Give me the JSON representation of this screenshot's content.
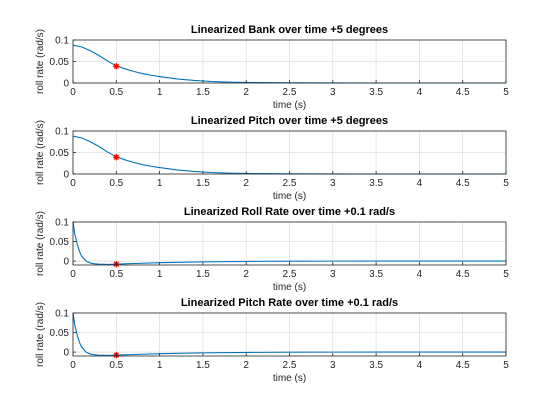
{
  "chart_data": [
    {
      "type": "line",
      "title": "Linearized Bank over time +5 degrees",
      "xlabel": "time (s)",
      "ylabel": "roll rate (rad/s)",
      "xlim": [
        0,
        5
      ],
      "ylim": [
        0,
        0.1
      ],
      "xticks": [
        "0",
        "0.5",
        "1",
        "1.5",
        "2",
        "2.5",
        "3",
        "3.5",
        "4",
        "4.5",
        "5"
      ],
      "yticks": [
        "0",
        "0.05",
        "0.1"
      ],
      "grid": true,
      "series": [
        {
          "color": "#0072bd",
          "x": [
            0,
            0.1,
            0.2,
            0.3,
            0.4,
            0.5,
            0.6,
            0.7,
            0.8,
            0.9,
            1.0,
            1.2,
            1.4,
            1.6,
            1.8,
            2.0,
            2.5,
            3.0,
            3.5,
            4.0,
            4.5,
            5.0
          ],
          "y": [
            0.088,
            0.084,
            0.075,
            0.064,
            0.051,
            0.04,
            0.033,
            0.027,
            0.022,
            0.018,
            0.015,
            0.0095,
            0.006,
            0.0035,
            0.002,
            0.0012,
            0.0004,
            0.0001,
            0,
            0,
            0,
            0
          ]
        }
      ],
      "marker": {
        "x": 0.5,
        "y": 0.039,
        "symbol": "*",
        "color": "#ff0000"
      }
    },
    {
      "type": "line",
      "title": "Linearized Pitch over time +5 degrees",
      "xlabel": "time (s)",
      "ylabel": "roll rate (rad/s)",
      "xlim": [
        0,
        5
      ],
      "ylim": [
        0,
        0.1
      ],
      "xticks": [
        "0",
        "0.5",
        "1",
        "1.5",
        "2",
        "2.5",
        "3",
        "3.5",
        "4",
        "4.5",
        "5"
      ],
      "yticks": [
        "0",
        "0.05",
        "0.1"
      ],
      "grid": true,
      "series": [
        {
          "color": "#0072bd",
          "x": [
            0,
            0.1,
            0.2,
            0.3,
            0.4,
            0.5,
            0.6,
            0.7,
            0.8,
            0.9,
            1.0,
            1.2,
            1.4,
            1.6,
            1.8,
            2.0,
            2.5,
            3.0,
            3.5,
            4.0,
            4.5,
            5.0
          ],
          "y": [
            0.088,
            0.084,
            0.075,
            0.064,
            0.051,
            0.04,
            0.033,
            0.027,
            0.022,
            0.018,
            0.015,
            0.0095,
            0.006,
            0.0035,
            0.002,
            0.0012,
            0.0004,
            0.0001,
            0,
            0,
            0,
            0
          ]
        }
      ],
      "marker": {
        "x": 0.5,
        "y": 0.039,
        "symbol": "*",
        "color": "#ff0000"
      }
    },
    {
      "type": "line",
      "title": "Linearized Roll Rate over time +0.1 rad/s",
      "xlabel": "time (s)",
      "ylabel": "roll rate (rad/s)",
      "xlim": [
        0,
        5
      ],
      "ylim": [
        -0.01,
        0.1
      ],
      "xticks": [
        "0",
        "0.5",
        "1",
        "1.5",
        "2",
        "2.5",
        "3",
        "3.5",
        "4",
        "4.5",
        "5"
      ],
      "yticks": [
        "0",
        "0.05",
        "0.1"
      ],
      "grid": true,
      "series": [
        {
          "color": "#0072bd",
          "x": [
            0,
            0.02,
            0.05,
            0.08,
            0.1,
            0.15,
            0.2,
            0.25,
            0.3,
            0.4,
            0.5,
            0.6,
            0.8,
            1.0,
            1.5,
            2.0,
            2.5,
            3.0,
            4.0,
            5.0
          ],
          "y": [
            0.1,
            0.07,
            0.042,
            0.022,
            0.013,
            0.0,
            -0.005,
            -0.007,
            -0.008,
            -0.0085,
            -0.008,
            -0.007,
            -0.0055,
            -0.004,
            -0.002,
            -0.0008,
            -0.0003,
            -0.0001,
            0,
            0
          ]
        }
      ],
      "marker": {
        "x": 0.5,
        "y": -0.008,
        "symbol": "*",
        "color": "#ff0000"
      }
    },
    {
      "type": "line",
      "title": "Linearized Pitch Rate over time +0.1 rad/s",
      "xlabel": "time (s)",
      "ylabel": "roll rate (rad/s)",
      "xlim": [
        0,
        5
      ],
      "ylim": [
        -0.01,
        0.1
      ],
      "xticks": [
        "0",
        "0.5",
        "1",
        "1.5",
        "2",
        "2.5",
        "3",
        "3.5",
        "4",
        "4.5",
        "5"
      ],
      "yticks": [
        "0",
        "0.05",
        "0.1"
      ],
      "grid": true,
      "series": [
        {
          "color": "#0072bd",
          "x": [
            0,
            0.02,
            0.05,
            0.08,
            0.1,
            0.15,
            0.2,
            0.25,
            0.3,
            0.4,
            0.5,
            0.6,
            0.8,
            1.0,
            1.5,
            2.0,
            2.5,
            3.0,
            4.0,
            5.0
          ],
          "y": [
            0.1,
            0.07,
            0.042,
            0.022,
            0.013,
            0.0,
            -0.005,
            -0.007,
            -0.008,
            -0.0085,
            -0.008,
            -0.007,
            -0.0055,
            -0.004,
            -0.002,
            -0.0008,
            -0.0003,
            -0.0001,
            0,
            0
          ]
        }
      ],
      "marker": {
        "x": 0.5,
        "y": -0.008,
        "symbol": "*",
        "color": "#ff0000"
      }
    }
  ]
}
